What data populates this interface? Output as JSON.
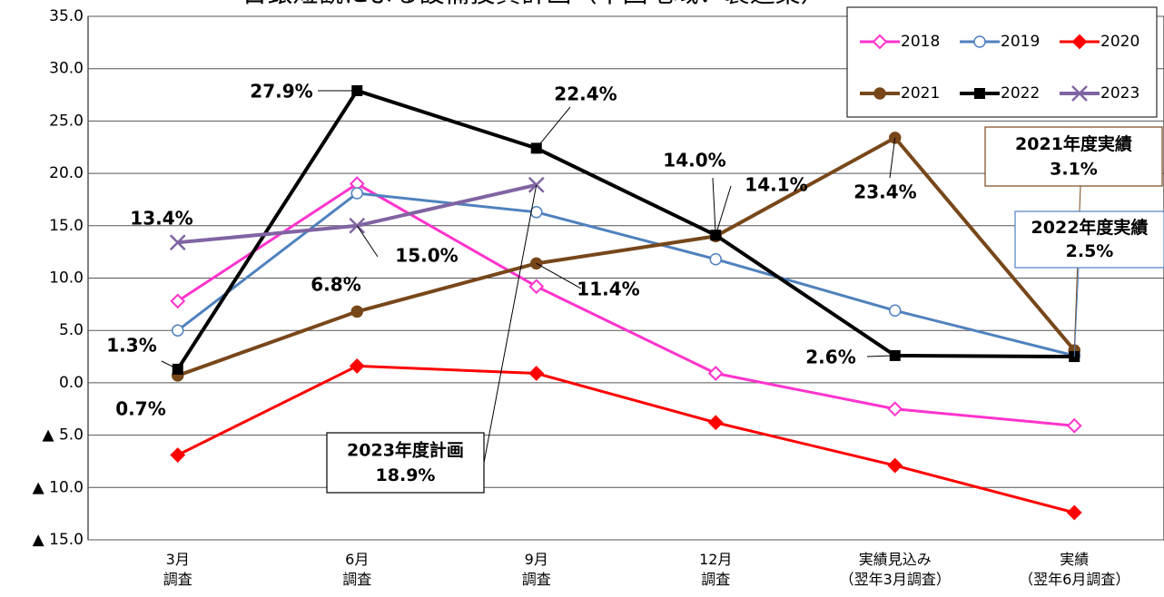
{
  "chart_data": {
    "type": "line",
    "title": "日銀短観による設備投資計画（中国地域：製造業）",
    "categories": [
      "3月\n調査",
      "6月\n調査",
      "9月\n調査",
      "12月\n調査",
      "実績見込み\n（翌年3月調査）",
      "実績\n（翌年6月調査）"
    ],
    "ylim": [
      -15,
      35
    ],
    "yticks": [
      {
        "value": -15,
        "label": "▲ 15.0"
      },
      {
        "value": -10,
        "label": "▲ 10.0"
      },
      {
        "value": -5,
        "label": "▲ 5.0"
      },
      {
        "value": 0,
        "label": "0.0"
      },
      {
        "value": 5,
        "label": "5.0"
      },
      {
        "value": 10,
        "label": "10.0"
      },
      {
        "value": 15,
        "label": "15.0"
      },
      {
        "value": 20,
        "label": "20.0"
      },
      {
        "value": 25,
        "label": "25.0"
      },
      {
        "value": 30,
        "label": "30.0"
      },
      {
        "value": 35,
        "label": "35.0"
      }
    ],
    "grid": true,
    "legend": "upper right",
    "series": [
      {
        "name": "2018",
        "color": "#ff33cc",
        "marker": "diamond-open",
        "values": [
          7.8,
          19.0,
          9.2,
          0.9,
          -2.5,
          -4.1
        ]
      },
      {
        "name": "2019",
        "color": "#4f81bd",
        "marker": "circle-open",
        "values": [
          5.0,
          18.1,
          16.3,
          11.8,
          6.9,
          2.6
        ]
      },
      {
        "name": "2020",
        "color": "#ff0000",
        "marker": "diamond",
        "values": [
          -6.9,
          1.6,
          0.9,
          -3.8,
          -7.9,
          -12.4
        ]
      },
      {
        "name": "2021",
        "color": "#77471a",
        "marker": "circle",
        "values": [
          0.7,
          6.8,
          11.4,
          14.0,
          23.4,
          3.1
        ],
        "value_labels": [
          "0.7%",
          "6.8%",
          "11.4%",
          "14.0%",
          "23.4%",
          "3.1%"
        ],
        "callout": "2021年度実績"
      },
      {
        "name": "2022",
        "color": "#000000",
        "marker": "square",
        "values": [
          1.3,
          27.9,
          22.4,
          14.1,
          2.6,
          2.5
        ],
        "value_labels": [
          "1.3%",
          "27.9%",
          "22.4%",
          "14.1%",
          "2.6%",
          "2.5%"
        ],
        "callout": "2022年度実績"
      },
      {
        "name": "2023",
        "color": "#8064a2",
        "marker": "x",
        "values": [
          13.4,
          15.0,
          18.9,
          null,
          null,
          null
        ],
        "value_labels": [
          "13.4%",
          "15.0%",
          "18.9%",
          null,
          null,
          null
        ],
        "callout": "2023年度計画"
      }
    ]
  }
}
